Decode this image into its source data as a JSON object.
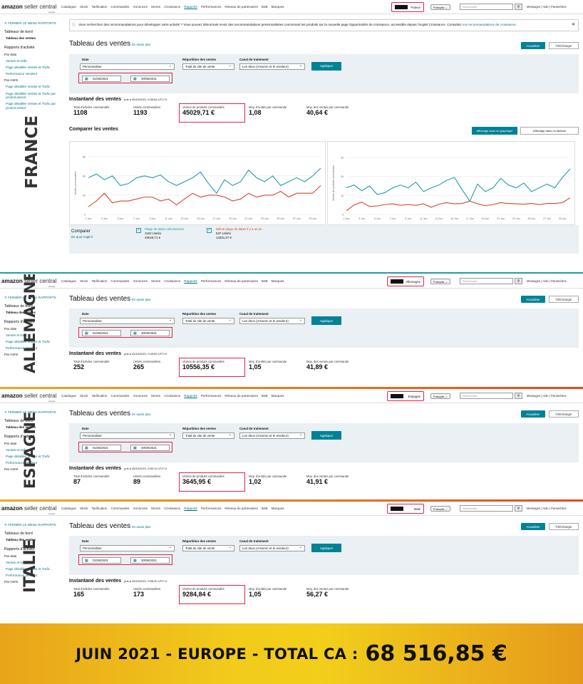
{
  "app": {
    "logo_main": "amazon",
    "logo_rest": " seller central",
    "logo_region": "europe"
  },
  "nav": [
    "Catalogue",
    "Stock",
    "Tarification",
    "Commandes",
    "Annonces",
    "Stores",
    "Croissance",
    "Rapports",
    "Performances",
    "Réseau de partenaires",
    "B2B",
    "Marques"
  ],
  "header": {
    "language": "Français",
    "search_placeholder": "Rechercher",
    "links": "Messages | Aide | Paramètres"
  },
  "sidebar": {
    "close": "FERMER LE MENU RAPPORTS",
    "dashboards": "Tableaux de bord",
    "sales_dashboard": "Tableau des ventes",
    "activity_reports": "Rapports d'activité",
    "by_date": "Par date",
    "sales_traffic": "Ventes et trafic",
    "detail_page": "Page détaillée Ventes et Trafic",
    "seller_perf": "Performance vendeur",
    "by_asin": "Par ASIN",
    "detail_asin": "Page détaillée Ventes et Trafic",
    "detail_parent": "Page détaillée Ventes et Trafic par produit parent",
    "detail_child": "Page détaillée Ventes et Trafic par produit enfant"
  },
  "notice": {
    "text": "Vous recherchez des recommandations pour développer votre activité ? Vous pouvez désormais revoir des recommandations personnalisées concernant les produits sur la nouvelle page Opportunités de croissance, accessible depuis l'onglet Croissance. Consultez",
    "link": "vos recommandations de croissance",
    "end": "."
  },
  "page": {
    "title": "Tableau des ventes",
    "learn_more": "En savoir plus",
    "refresh": "Actualiser",
    "download": "Télécharger"
  },
  "filters": {
    "date_label": "Date",
    "date_value": "Personnaliser",
    "split_label": "Répartition des ventes",
    "split_value": "Total du site de vente",
    "channel_label": "Canal de traitement",
    "channel_value": "Les deux (Amazon et le vendeur)",
    "apply": "Appliquer",
    "start": "01/06/2021",
    "end": "30/06/2021"
  },
  "metric_labels": {
    "articles": "Total d'articles commandés",
    "units": "Unités commandées",
    "sales": "Ventes de produits commandés",
    "avg_units": "Moy. d'unités par commande",
    "avg_sales": "Moy. des ventes par commande"
  },
  "snapshot_title": "Instantané des ventes",
  "markets": [
    {
      "country": "France",
      "overlay": "FRANCE",
      "snapshot": "pris à 25/10/2021, 9:35:54 UTC+2",
      "articles": "1108",
      "units": "1193",
      "sales": "45029,71 €",
      "avg_units": "1,08",
      "avg_sales": "40,64 €"
    },
    {
      "country": "Allemagne",
      "overlay": "ALLEMAGNE",
      "snapshot": "pris à 25/10/2021, 9:43:59 UTC+2",
      "articles": "252",
      "units": "265",
      "sales": "10556,35 €",
      "avg_units": "1,05",
      "avg_sales": "41,89 €"
    },
    {
      "country": "Espagne",
      "overlay": "ESPAGNE",
      "snapshot": "pris à 25/10/2021, 9:50:11 UTC+2",
      "articles": "87",
      "units": "89",
      "sales": "3645,95 €",
      "avg_units": "1,02",
      "avg_sales": "41,91 €"
    },
    {
      "country": "Italie",
      "overlay": "ITALIE",
      "snapshot": "pris à 25/10/2021, 9:56:00 UTC+2",
      "articles": "165",
      "units": "173",
      "sales": "9284,84 €",
      "avg_units": "1,05",
      "avg_sales": "56,27 €"
    }
  ],
  "compare": {
    "title": "Comparer les ventes",
    "graph_btn": "Affichage dans un graphique",
    "table_btn": "Affichage dans un tableau",
    "compare": "Comparer",
    "what": "De quoi s'agit-il",
    "sel_range": "Plage de dates sélectionnée",
    "sel_units": "1193 Unités",
    "sel_sales": "45029,71 €",
    "prev_range": "Même plage de dates il y a un an",
    "prev_units": "537 Unités",
    "prev_sales": "14301,67 €"
  },
  "banner": {
    "text": "JUIN 2021 - EUROPE - TOTAL CA :",
    "value": "68 516,85 €"
  },
  "colors": {
    "teal": "#1f9bad",
    "red": "#d5482a",
    "accent": "#008296",
    "highlight": "#e1244a"
  },
  "chart_data": [
    {
      "type": "line",
      "ylabel": "Unités commandées",
      "x": [
        "1 Jun",
        "2 Jun",
        "3 Jun",
        "4 Jun",
        "5 Jun",
        "6 Jun",
        "7 Jun",
        "8 Jun",
        "9 Jun",
        "10 Jun",
        "11 Jun",
        "12 Jun",
        "13 Jun",
        "14 Jun",
        "15 Jun",
        "16 Jun",
        "17 Jun",
        "18 Jun",
        "19 Jun",
        "20 Jun",
        "21 Jun",
        "22 Jun",
        "23 Jun",
        "24 Jun",
        "25 Jun",
        "26 Jun",
        "27 Jun",
        "28 Jun",
        "29 Jun",
        "30 Jun"
      ],
      "xticks": [
        "1 Jun",
        "3 Jun",
        "5 Jun",
        "7 Jun",
        "9 Jun",
        "11 Jun",
        "13 Jun",
        "15 Jun",
        "17 Jun",
        "19 Jun",
        "21 Jun",
        "23 Jun",
        "25 Jun",
        "27 Jun",
        "29 Jun"
      ],
      "yticks": [
        0,
        20,
        40,
        60
      ],
      "ylim": [
        0,
        65
      ],
      "series": [
        {
          "values": [
            38,
            42,
            36,
            40,
            30,
            32,
            38,
            40,
            38,
            41,
            34,
            30,
            34,
            38,
            44,
            32,
            22,
            36,
            30,
            34,
            46,
            38,
            34,
            40,
            30,
            34,
            38,
            34,
            40,
            48
          ]
        },
        {
          "values": [
            8,
            14,
            22,
            12,
            14,
            14,
            16,
            18,
            18,
            14,
            16,
            10,
            16,
            22,
            18,
            20,
            20,
            18,
            14,
            16,
            22,
            18,
            20,
            20,
            24,
            18,
            22,
            22,
            22,
            30
          ]
        }
      ]
    },
    {
      "type": "line",
      "ylabel": "Ventes de produits commandés",
      "x": [
        "1 Jun",
        "2 Jun",
        "3 Jun",
        "4 Jun",
        "5 Jun",
        "6 Jun",
        "7 Jun",
        "8 Jun",
        "9 Jun",
        "10 Jun",
        "11 Jun",
        "12 Jun",
        "13 Jun",
        "14 Jun",
        "15 Jun",
        "16 Jun",
        "17 Jun",
        "18 Jun",
        "19 Jun",
        "20 Jun",
        "21 Jun",
        "22 Jun",
        "23 Jun",
        "24 Jun",
        "25 Jun",
        "26 Jun",
        "27 Jun",
        "28 Jun",
        "29 Jun",
        "30 Jun"
      ],
      "xticks": [
        "1 Jun",
        "3 Jun",
        "5 Jun",
        "7 Jun",
        "9 Jun",
        "11 Jun",
        "13 Jun",
        "15 Jun",
        "17 Jun",
        "19 Jun",
        "21 Jun",
        "23 Jun",
        "25 Jun",
        "27 Jun",
        "29 Jun"
      ],
      "yticks": [
        "0",
        "1k",
        "2k",
        "3k"
      ],
      "ylim": [
        0,
        3300
      ],
      "series": [
        {
          "values": [
            1400,
            1550,
            1250,
            1500,
            1050,
            1150,
            1400,
            1550,
            1400,
            1700,
            1200,
            1400,
            1550,
            1800,
            1950,
            1300,
            700,
            1600,
            1200,
            1400,
            1900,
            1550,
            1400,
            1650,
            1200,
            1400,
            1600,
            1400,
            1950,
            2400
          ]
        },
        {
          "values": [
            200,
            500,
            650,
            420,
            450,
            520,
            560,
            480,
            520,
            480,
            560,
            380,
            540,
            620,
            560,
            580,
            700,
            560,
            460,
            520,
            620,
            580,
            560,
            540,
            580,
            520,
            580,
            580,
            620,
            880
          ]
        }
      ]
    }
  ]
}
